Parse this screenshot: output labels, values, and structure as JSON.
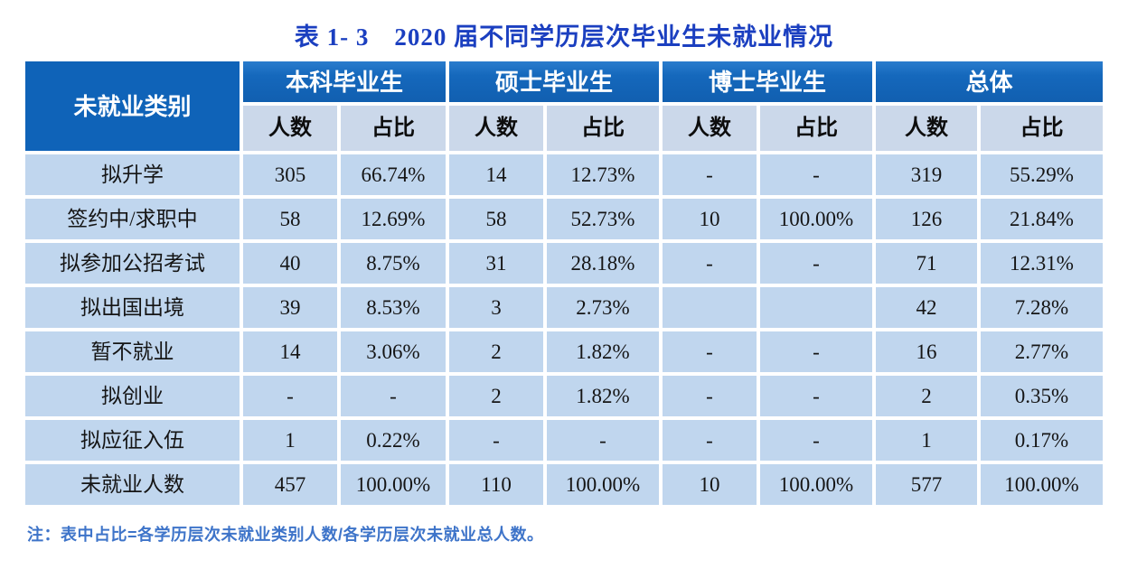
{
  "title": "表 1- 3　2020 届不同学历层次毕业生未就业情况",
  "table": {
    "category_header": "未就业类别",
    "group_headers": [
      "本科毕业生",
      "硕士毕业生",
      "博士毕业生",
      "总体"
    ],
    "subheader_count": "人数",
    "subheader_ratio": "占比",
    "rows": [
      {
        "category": "拟升学",
        "cells": [
          "305",
          "66.74%",
          "14",
          "12.73%",
          "-",
          "-",
          "319",
          "55.29%"
        ]
      },
      {
        "category": "签约中/求职中",
        "cells": [
          "58",
          "12.69%",
          "58",
          "52.73%",
          "10",
          "100.00%",
          "126",
          "21.84%"
        ]
      },
      {
        "category": "拟参加公招考试",
        "cells": [
          "40",
          "8.75%",
          "31",
          "28.18%",
          "-",
          "-",
          "71",
          "12.31%"
        ]
      },
      {
        "category": "拟出国出境",
        "cells": [
          "39",
          "8.53%",
          "3",
          "2.73%",
          "",
          "",
          "42",
          "7.28%"
        ]
      },
      {
        "category": "暂不就业",
        "cells": [
          "14",
          "3.06%",
          "2",
          "1.82%",
          "-",
          "-",
          "16",
          "2.77%"
        ]
      },
      {
        "category": "拟创业",
        "cells": [
          "-",
          "-",
          "2",
          "1.82%",
          "-",
          "-",
          "2",
          "0.35%"
        ]
      },
      {
        "category": "拟应征入伍",
        "cells": [
          "1",
          "0.22%",
          "-",
          "-",
          "-",
          "-",
          "1",
          "0.17%"
        ]
      },
      {
        "category": "未就业人数",
        "cells": [
          "457",
          "100.00%",
          "110",
          "100.00%",
          "10",
          "100.00%",
          "577",
          "100.00%"
        ]
      }
    ]
  },
  "note": "注：表中占比=各学历层次未就业类别人数/各学历层次未就业总人数。",
  "colors": {
    "title_text": "#1b3fc0",
    "category_header_bg": "#0f63b8",
    "group_header_bg": "#1568bc",
    "subheader_bg": "#cbd8ea",
    "data_cell_bg": "#c0d6ee",
    "note_text": "#3e74c9",
    "header_text": "#ffffff",
    "cell_text": "#151515",
    "page_bg": "#ffffff"
  },
  "chart_data": {
    "type": "table",
    "title": "表 1- 3　2020 届不同学历层次毕业生未就业情况",
    "columns": [
      "未就业类别",
      "本科毕业生 人数",
      "本科毕业生 占比",
      "硕士毕业生 人数",
      "硕士毕业生 占比",
      "博士毕业生 人数",
      "博士毕业生 占比",
      "总体 人数",
      "总体 占比"
    ],
    "rows": [
      [
        "拟升学",
        305,
        "66.74%",
        14,
        "12.73%",
        "-",
        "-",
        319,
        "55.29%"
      ],
      [
        "签约中/求职中",
        58,
        "12.69%",
        58,
        "52.73%",
        10,
        "100.00%",
        126,
        "21.84%"
      ],
      [
        "拟参加公招考试",
        40,
        "8.75%",
        31,
        "28.18%",
        "-",
        "-",
        71,
        "12.31%"
      ],
      [
        "拟出国出境",
        39,
        "8.53%",
        3,
        "2.73%",
        "",
        "",
        42,
        "7.28%"
      ],
      [
        "暂不就业",
        14,
        "3.06%",
        2,
        "1.82%",
        "-",
        "-",
        16,
        "2.77%"
      ],
      [
        "拟创业",
        "-",
        "-",
        2,
        "1.82%",
        "-",
        "-",
        2,
        "0.35%"
      ],
      [
        "拟应征入伍",
        1,
        "0.22%",
        "-",
        "-",
        "-",
        "-",
        1,
        "0.17%"
      ],
      [
        "未就业人数",
        457,
        "100.00%",
        110,
        "100.00%",
        10,
        "100.00%",
        577,
        "100.00%"
      ]
    ]
  }
}
